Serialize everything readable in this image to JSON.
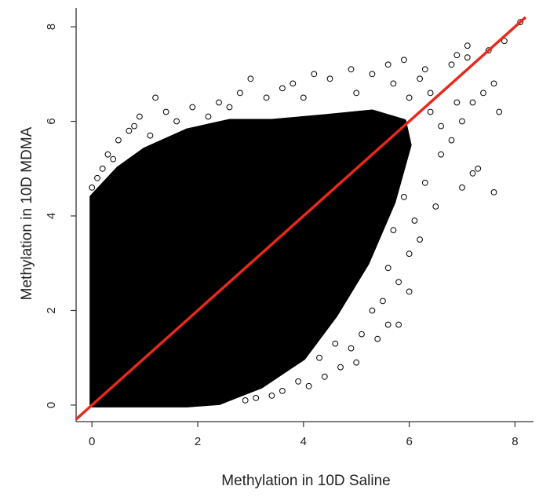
{
  "chart_data": {
    "type": "scatter",
    "title": "",
    "xlabel": "Methylation in 10D Saline",
    "ylabel": "Methylation in 10D MDMA",
    "xlim": [
      -0.3,
      8.35
    ],
    "ylim": [
      -0.35,
      8.4
    ],
    "x_ticks": [
      0,
      2,
      4,
      6,
      8
    ],
    "y_ticks": [
      0,
      2,
      4,
      6,
      8
    ],
    "x_tick_labels": [
      "0",
      "2",
      "4",
      "6",
      "8"
    ],
    "y_tick_labels": [
      "0",
      "2",
      "4",
      "6",
      "8"
    ],
    "marker": "open-circle",
    "grid": false,
    "legend": "none",
    "colors": {
      "points": "#000000",
      "identity_line": "#e8291c",
      "axes": "#333333"
    },
    "dense_region": [
      [
        0,
        0
      ],
      [
        0,
        4.4
      ],
      [
        0.5,
        5.0
      ],
      [
        1.0,
        5.4
      ],
      [
        1.8,
        5.8
      ],
      [
        2.6,
        6.0
      ],
      [
        3.4,
        6.0
      ],
      [
        4.4,
        6.1
      ],
      [
        5.3,
        6.2
      ],
      [
        5.9,
        6.0
      ],
      [
        6.0,
        5.5
      ],
      [
        5.7,
        4.3
      ],
      [
        5.2,
        3.0
      ],
      [
        4.6,
        1.9
      ],
      [
        4.0,
        1.0
      ],
      [
        3.2,
        0.4
      ],
      [
        2.4,
        0.05
      ],
      [
        1.8,
        0
      ]
    ],
    "sparse_points": [
      {
        "x": 8.1,
        "y": 8.1
      },
      {
        "x": 7.8,
        "y": 7.7
      },
      {
        "x": 7.5,
        "y": 7.5
      },
      {
        "x": 7.1,
        "y": 7.6
      },
      {
        "x": 6.9,
        "y": 7.4
      },
      {
        "x": 7.1,
        "y": 7.35
      },
      {
        "x": 6.8,
        "y": 7.2
      },
      {
        "x": 7.6,
        "y": 6.8
      },
      {
        "x": 7.4,
        "y": 6.6
      },
      {
        "x": 7.2,
        "y": 6.4
      },
      {
        "x": 7.0,
        "y": 6.0
      },
      {
        "x": 6.8,
        "y": 5.6
      },
      {
        "x": 6.6,
        "y": 5.3
      },
      {
        "x": 7.2,
        "y": 4.9
      },
      {
        "x": 7.0,
        "y": 4.6
      },
      {
        "x": 7.6,
        "y": 4.5
      },
      {
        "x": 7.7,
        "y": 6.2
      },
      {
        "x": 7.3,
        "y": 5.0
      },
      {
        "x": 6.4,
        "y": 6.6
      },
      {
        "x": 6.2,
        "y": 6.9
      },
      {
        "x": 5.9,
        "y": 7.3
      },
      {
        "x": 6.3,
        "y": 7.1
      },
      {
        "x": 5.6,
        "y": 7.2
      },
      {
        "x": 5.3,
        "y": 7.0
      },
      {
        "x": 4.9,
        "y": 7.1
      },
      {
        "x": 4.5,
        "y": 6.9
      },
      {
        "x": 4.2,
        "y": 7.0
      },
      {
        "x": 3.8,
        "y": 6.8
      },
      {
        "x": 3.6,
        "y": 6.7
      },
      {
        "x": 3.0,
        "y": 6.9
      },
      {
        "x": 2.8,
        "y": 6.6
      },
      {
        "x": 2.4,
        "y": 6.4
      },
      {
        "x": 1.9,
        "y": 6.3
      },
      {
        "x": 1.4,
        "y": 6.2
      },
      {
        "x": 1.2,
        "y": 6.5
      },
      {
        "x": 0.9,
        "y": 6.1
      },
      {
        "x": 0.7,
        "y": 5.8
      },
      {
        "x": 0.5,
        "y": 5.6
      },
      {
        "x": 0.3,
        "y": 5.3
      },
      {
        "x": 0.2,
        "y": 5.0
      },
      {
        "x": 0.1,
        "y": 4.8
      },
      {
        "x": 0.0,
        "y": 4.6
      },
      {
        "x": 0.8,
        "y": 5.9
      },
      {
        "x": 1.6,
        "y": 6.0
      },
      {
        "x": 2.2,
        "y": 6.1
      },
      {
        "x": 6.1,
        "y": 3.9
      },
      {
        "x": 6.2,
        "y": 3.5
      },
      {
        "x": 6.0,
        "y": 3.2
      },
      {
        "x": 6.0,
        "y": 2.4
      },
      {
        "x": 5.8,
        "y": 2.6
      },
      {
        "x": 5.6,
        "y": 2.9
      },
      {
        "x": 5.5,
        "y": 2.2
      },
      {
        "x": 5.8,
        "y": 1.7
      },
      {
        "x": 5.6,
        "y": 1.7
      },
      {
        "x": 5.4,
        "y": 1.4
      },
      {
        "x": 5.1,
        "y": 1.5
      },
      {
        "x": 4.9,
        "y": 1.2
      },
      {
        "x": 5.0,
        "y": 0.9
      },
      {
        "x": 4.7,
        "y": 0.8
      },
      {
        "x": 4.4,
        "y": 0.6
      },
      {
        "x": 4.1,
        "y": 0.4
      },
      {
        "x": 3.9,
        "y": 0.5
      },
      {
        "x": 3.6,
        "y": 0.3
      },
      {
        "x": 3.4,
        "y": 0.2
      },
      {
        "x": 3.1,
        "y": 0.15
      },
      {
        "x": 2.9,
        "y": 0.1
      },
      {
        "x": 4.3,
        "y": 1.0
      },
      {
        "x": 4.6,
        "y": 1.3
      },
      {
        "x": 5.3,
        "y": 2.0
      },
      {
        "x": 5.7,
        "y": 3.7
      },
      {
        "x": 5.9,
        "y": 4.4
      },
      {
        "x": 6.3,
        "y": 4.7
      },
      {
        "x": 6.5,
        "y": 4.2
      },
      {
        "x": 6.6,
        "y": 5.9
      },
      {
        "x": 6.9,
        "y": 6.4
      },
      {
        "x": 4.0,
        "y": 6.5
      },
      {
        "x": 5.0,
        "y": 6.6
      },
      {
        "x": 3.3,
        "y": 6.5
      },
      {
        "x": 2.6,
        "y": 6.3
      },
      {
        "x": 1.1,
        "y": 5.7
      },
      {
        "x": 0.4,
        "y": 5.2
      },
      {
        "x": 6.0,
        "y": 6.5
      },
      {
        "x": 5.7,
        "y": 6.8
      },
      {
        "x": 6.4,
        "y": 6.2
      }
    ],
    "identity_line": {
      "x": [
        -0.3,
        8.2
      ],
      "y": [
        -0.3,
        8.2
      ]
    }
  }
}
